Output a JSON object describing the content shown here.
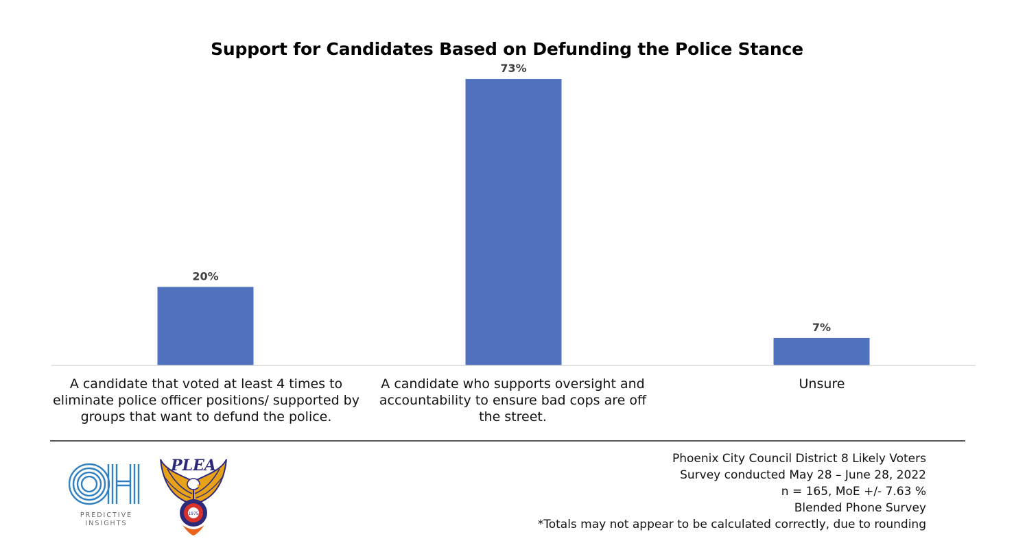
{
  "chart_data": {
    "type": "bar",
    "title": "Support for Candidates Based on Defunding the Police Stance",
    "categories": [
      "A candidate that voted at least 4 times to eliminate police officer positions/ supported by groups that want to defund the police.",
      "A candidate who supports oversight and accountability to ensure bad cops are off the street.",
      "Unsure"
    ],
    "values": [
      20,
      73,
      7
    ],
    "data_labels": [
      "20%",
      "73%",
      "7%"
    ],
    "ylim": [
      0,
      80
    ],
    "grid": false,
    "legend": "none",
    "bar_color": "#4f71be"
  },
  "footer": {
    "notes": [
      "Phoenix City Council District 8 Likely Voters",
      "Survey conducted May 28 – June 28, 2022",
      "n = 165, MoE +/- 7.63 %",
      "Blended Phone Survey",
      "*Totals may not appear to be calculated correctly, due to rounding"
    ]
  },
  "logos": {
    "oh": {
      "text": "OH",
      "caption_line1": "PREDICTIVE",
      "caption_line2": "INSIGHTS",
      "color": "#2f7fc1"
    },
    "plea": {
      "text": "PLEA",
      "year": "1975",
      "primary_color": "#2e2a7a",
      "accent_color": "#e8a21a"
    }
  }
}
